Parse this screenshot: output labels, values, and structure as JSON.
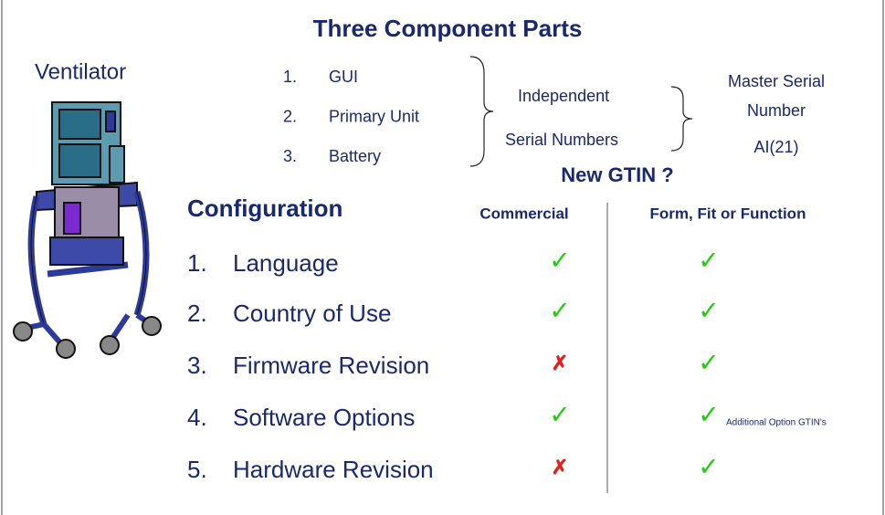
{
  "title": "Three Component Parts",
  "device": "Ventilator",
  "components": [
    {
      "number": "1.",
      "label": "GUI"
    },
    {
      "number": "2.",
      "label": "Primary Unit"
    },
    {
      "number": "3.",
      "label": "Battery"
    }
  ],
  "independent": [
    "Independent",
    "Serial Numbers"
  ],
  "master": [
    "Master Serial",
    "Number",
    "AI(21)"
  ],
  "question": "New GTIN ?",
  "configuration": {
    "heading": "Configuration",
    "columns": [
      "Commercial",
      "Form, Fit or Function"
    ],
    "rows": [
      {
        "number": "1.",
        "label": "Language",
        "commercial": "✓",
        "fff": "✓"
      },
      {
        "number": "2.",
        "label": "Country of Use",
        "commercial": "✓",
        "fff": "✓"
      },
      {
        "number": "3.",
        "label": "Firmware Revision",
        "commercial": "✗",
        "fff": "✓"
      },
      {
        "number": "4.",
        "label": "Software Options",
        "commercial": "✓",
        "fff": "✓",
        "note": "Additional Option GTIN's"
      },
      {
        "number": "5.",
        "label": "Hardware Revision",
        "commercial": "✗",
        "fff": "✓"
      }
    ]
  }
}
